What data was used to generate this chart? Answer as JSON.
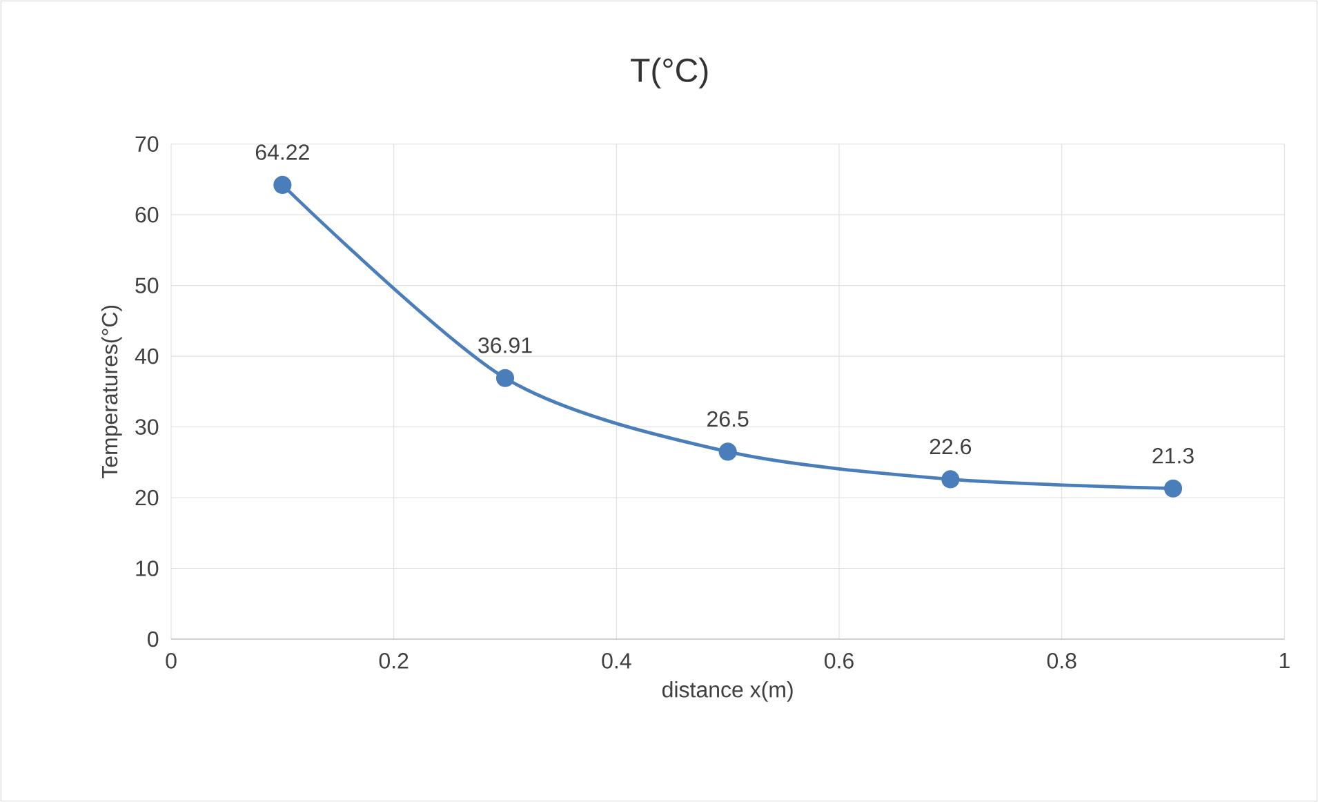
{
  "chart_data": {
    "type": "line",
    "title": "T(°C)",
    "xlabel": "distance x(m)",
    "ylabel": "Temperatures(°C)",
    "x": [
      0.1,
      0.3,
      0.5,
      0.7,
      0.9
    ],
    "series": [
      {
        "color": "#4a7ebb",
        "values": [
          64.22,
          36.91,
          26.5,
          22.6,
          21.3
        ]
      }
    ],
    "xlim": [
      0,
      1
    ],
    "xticks": [
      0,
      0.2,
      0.4,
      0.6,
      0.8,
      1
    ],
    "ylim": [
      0,
      70
    ],
    "yticks": [
      0,
      10,
      20,
      30,
      40,
      50,
      60,
      70
    ],
    "grid": true,
    "marker": "circle",
    "line_style": "solid",
    "data_labels": true
  }
}
